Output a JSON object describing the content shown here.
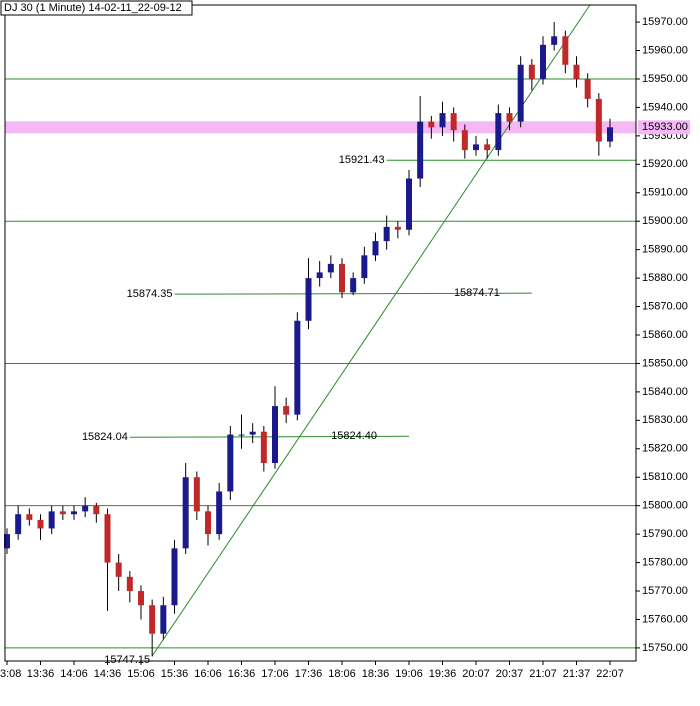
{
  "chart_data": {
    "type": "candlestick",
    "title": "DJ 30 (1 Minute) 14-02-11_22-09-12",
    "categories": [
      "3:08",
      null,
      null,
      "13:36",
      null,
      null,
      "14:06",
      null,
      null,
      "14:36",
      null,
      null,
      "15:06",
      null,
      null,
      "15:36",
      null,
      null,
      "16:06",
      null,
      null,
      "16:36",
      null,
      null,
      "17:06",
      null,
      null,
      "17:36",
      null,
      null,
      "18:06",
      null,
      null,
      "18:36",
      null,
      null,
      "19:06",
      null,
      null,
      "19:36",
      null,
      null,
      "20:07",
      null,
      null,
      "20:37",
      null,
      null,
      "21:07",
      null,
      null,
      "21:37",
      null,
      null,
      "22:07"
    ],
    "open": [
      15785,
      15790,
      15797,
      15795,
      15792,
      15798,
      15797,
      15798,
      15800,
      15797,
      15780,
      15775,
      15770,
      15765,
      15755,
      15765,
      15785,
      15810,
      15798,
      15790,
      15805,
      15825,
      15825,
      15826,
      15815,
      15835,
      15832,
      15865,
      15880,
      15882,
      15885,
      15875,
      15880,
      15888,
      15893,
      15898,
      15897,
      15915,
      15935,
      15933,
      15938,
      15932,
      15925,
      15927,
      15925,
      15938,
      15935,
      15955,
      15950,
      15962,
      15965,
      15955,
      15950,
      15943,
      15928
    ],
    "high": [
      15792,
      15800,
      15799,
      15797,
      15800,
      15800,
      15800,
      15803,
      15801,
      15799,
      15783,
      15777,
      15772,
      15767,
      15768,
      15788,
      15815,
      15812,
      15800,
      15808,
      15828,
      15832,
      15829,
      15828,
      15842,
      15838,
      15868,
      15887,
      15886,
      15888,
      15887,
      15882,
      15891,
      15896,
      15902,
      15900,
      15918,
      15944,
      15937,
      15942,
      15940,
      15934,
      15930,
      15929,
      15941,
      15940,
      15958,
      15957,
      15965,
      15970,
      15967,
      15958,
      15952,
      15945,
      15936
    ],
    "low": [
      15783,
      15788,
      15793,
      15788,
      15790,
      15795,
      15795,
      15796,
      15794,
      15763,
      15770,
      15766,
      15760,
      15747,
      15753,
      15762,
      15783,
      15795,
      15786,
      15788,
      15802,
      15820,
      15822,
      15812,
      15813,
      15829,
      15830,
      15862,
      15877,
      15880,
      15873,
      15874,
      15878,
      15886,
      15890,
      15894,
      15895,
      15912,
      15929,
      15930,
      15928,
      15922,
      15923,
      15922,
      15923,
      15932,
      15933,
      15946,
      15948,
      15960,
      15952,
      15947,
      15940,
      15923,
      15926
    ],
    "close": [
      15790,
      15797,
      15795,
      15792,
      15798,
      15797,
      15798,
      15800,
      15797,
      15780,
      15775,
      15770,
      15765,
      15755,
      15765,
      15785,
      15810,
      15798,
      15790,
      15805,
      15825,
      15825,
      15826,
      15815,
      15835,
      15832,
      15865,
      15880,
      15882,
      15885,
      15875,
      15880,
      15888,
      15893,
      15898,
      15897,
      15915,
      15935,
      15933,
      15938,
      15932,
      15925,
      15927,
      15925,
      15938,
      15935,
      15955,
      15950,
      15962,
      15965,
      15955,
      15950,
      15943,
      15928,
      15933
    ],
    "up_color": "#1a1a8c",
    "down_color": "#c0282a",
    "line_color": "#2e8b2e",
    "highlight_color": "#f4b8f4",
    "ylim": [
      15745.4,
      15976
    ],
    "yticks": [
      {
        "value": 15750,
        "label": "15750.00"
      },
      {
        "value": 15760,
        "label": "15760.00"
      },
      {
        "value": 15770,
        "label": "15770.00"
      },
      {
        "value": 15780,
        "label": "15780.00"
      },
      {
        "value": 15790,
        "label": "15790.00"
      },
      {
        "value": 15800,
        "label": "15800.00"
      },
      {
        "value": 15810,
        "label": "15810.00"
      },
      {
        "value": 15820,
        "label": "15820.00"
      },
      {
        "value": 15830,
        "label": "15830.00"
      },
      {
        "value": 15840,
        "label": "15840.00"
      },
      {
        "value": 15850,
        "label": "15850.00"
      },
      {
        "value": 15860,
        "label": "15860.00"
      },
      {
        "value": 15870,
        "label": "15870.00"
      },
      {
        "value": 15880,
        "label": "15880.00"
      },
      {
        "value": 15890,
        "label": "15890.00"
      },
      {
        "value": 15900,
        "label": "15900.00"
      },
      {
        "value": 15910,
        "label": "15910.00"
      },
      {
        "value": 15920,
        "label": "15920.00"
      },
      {
        "value": 15930,
        "label": "15930.00"
      },
      {
        "value": 15940,
        "label": "15940.00"
      },
      {
        "value": 15950,
        "label": "15950.00"
      },
      {
        "value": 15960,
        "label": "15960.00"
      },
      {
        "value": 15970,
        "label": "15970.00"
      }
    ],
    "horizontal_lines": [
      15750,
      15800,
      15850,
      15900,
      15950
    ],
    "highlight": {
      "value": 15933,
      "label": "15933.00"
    },
    "level_lines": [
      {
        "from": 11,
        "to": 36,
        "start": {
          "value": 15824.04,
          "label": "15824.04"
        },
        "end": {
          "value": 15824.4,
          "label": "15824.40"
        }
      },
      {
        "from": 15,
        "to": 47,
        "start": {
          "value": 15874.35,
          "label": "15874.35"
        },
        "end": {
          "value": 15874.71,
          "label": "15874.71"
        }
      },
      {
        "from": 34,
        "to": 56.5,
        "start": {
          "value": 15921.43,
          "label": "15921.43"
        },
        "end": {
          "value": 15921.43,
          "label": "15921.43"
        }
      }
    ],
    "low_label": {
      "x": 13,
      "value": 15747.15,
      "label": "15747.15"
    },
    "trend_line": {
      "x": [
        13,
        52.2
      ],
      "values": [
        15747.15,
        15976
      ]
    }
  }
}
